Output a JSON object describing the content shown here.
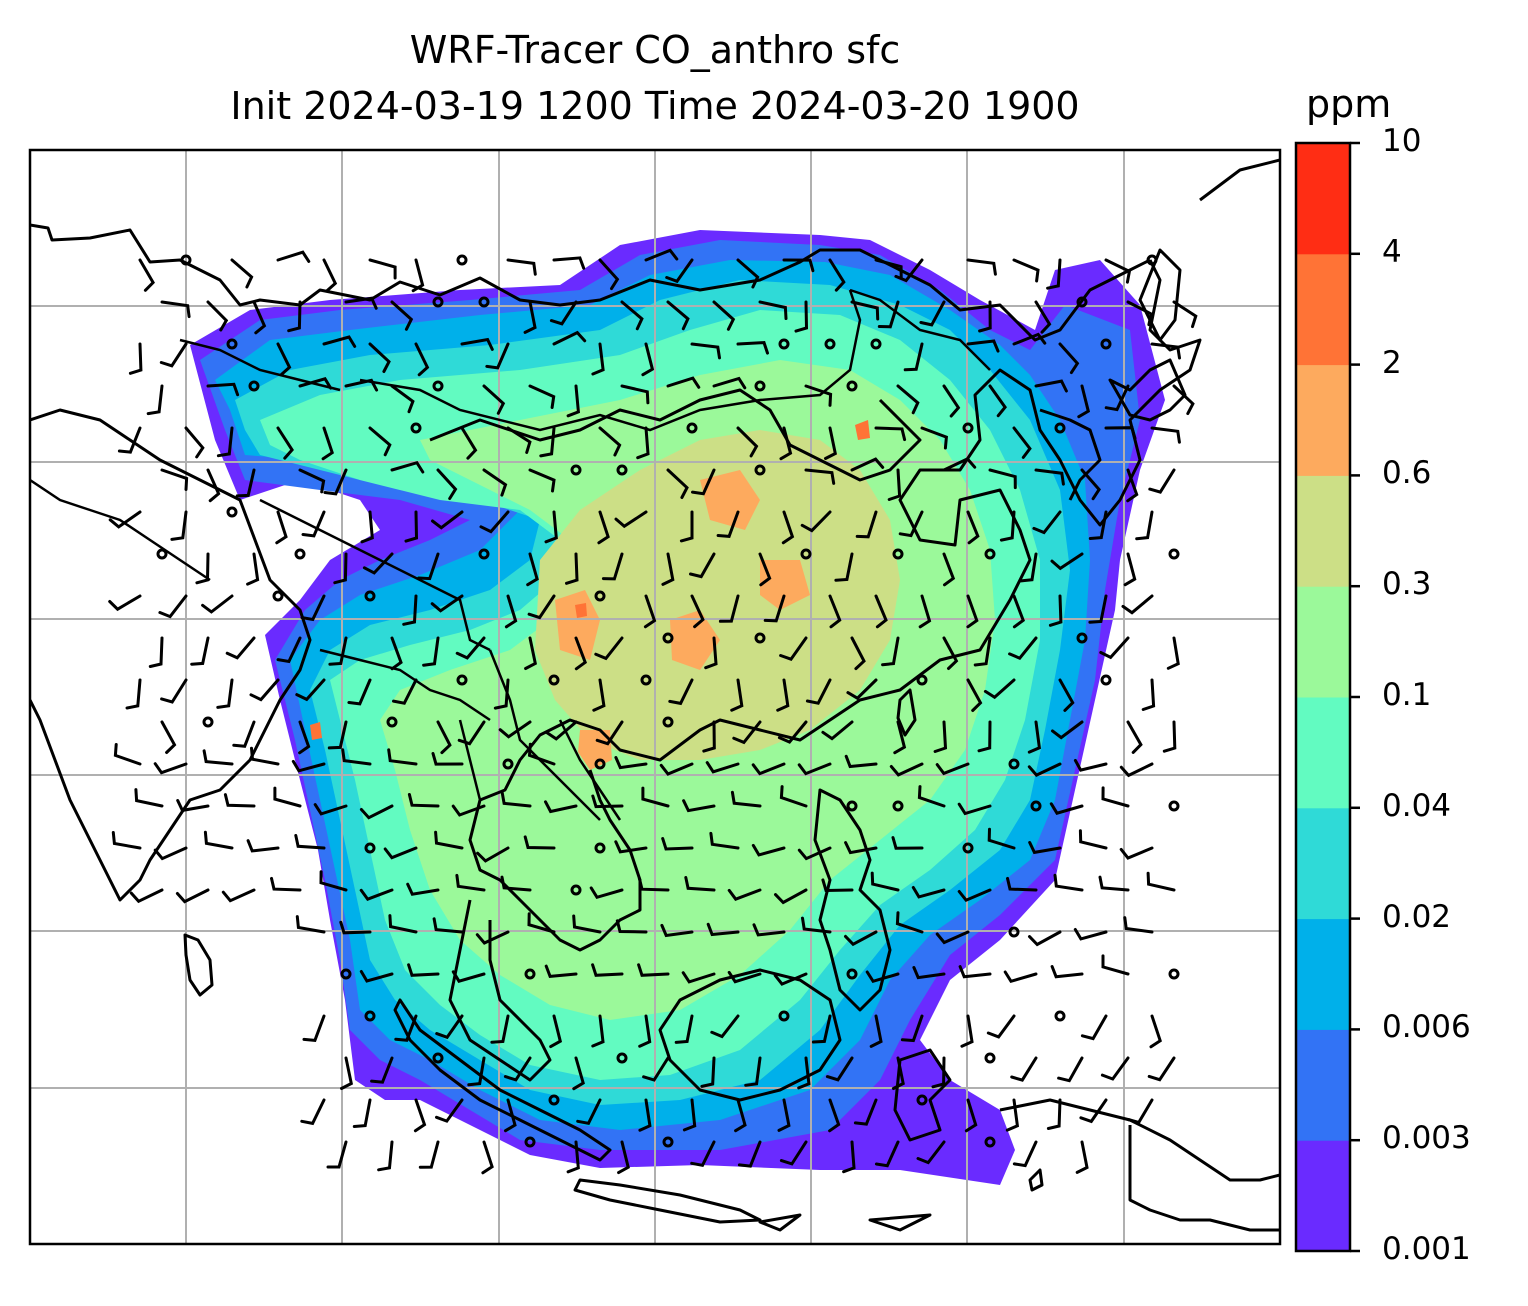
{
  "title": {
    "line1": "WRF-Tracer CO_anthro sfc",
    "line2": "Init 2024-03-19 1200 Time 2024-03-20 1900"
  },
  "colorbar": {
    "unit": "ppm",
    "levels": [
      "0.001",
      "0.003",
      "0.006",
      "0.02",
      "0.04",
      "0.1",
      "0.3",
      "0.6",
      "2",
      "4",
      "10"
    ],
    "colors": [
      "#6a2bff",
      "#3273f5",
      "#00b0ea",
      "#2fdad7",
      "#62fbc1",
      "#9bf99a",
      "#ccdf86",
      "#fdaa5e",
      "#ff7336",
      "#ff2d14"
    ]
  },
  "map": {
    "features": [
      "coastlines",
      "country-borders",
      "gridlines",
      "wind-barbs",
      "concentration-fill"
    ],
    "background": "#ffffff",
    "grid_color": "#b0b0b0"
  }
}
